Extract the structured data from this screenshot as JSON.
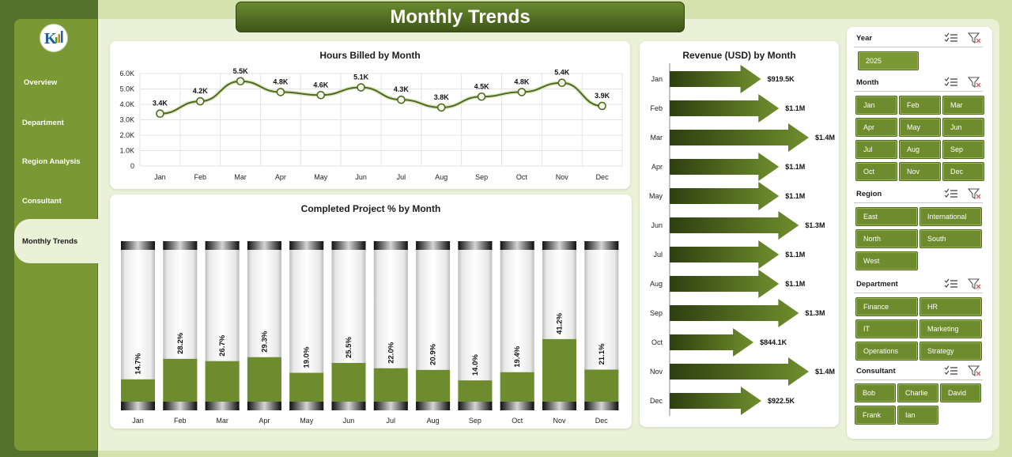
{
  "header": {
    "title": "Monthly Trends"
  },
  "sidebar": {
    "items": [
      {
        "label": "Overview",
        "active": false
      },
      {
        "label": "Department",
        "active": false
      },
      {
        "label": "Region Analysis",
        "active": false
      },
      {
        "label": "Consultant",
        "active": false
      },
      {
        "label": "Monthly Trends",
        "active": true
      }
    ]
  },
  "colors": {
    "accent": "#6e8c2d",
    "dark": "#3d5517",
    "background": "#d5e2ad"
  },
  "charts": {
    "hours": {
      "title": "Hours Billed by Month",
      "categories": [
        "Jan",
        "Feb",
        "Mar",
        "Apr",
        "May",
        "Jun",
        "Jul",
        "Aug",
        "Sep",
        "Oct",
        "Nov",
        "Dec"
      ],
      "labels": [
        "3.4K",
        "4.2K",
        "5.5K",
        "4.8K",
        "4.6K",
        "5.1K",
        "4.3K",
        "3.8K",
        "4.5K",
        "4.8K",
        "5.4K",
        "3.9K"
      ],
      "yticks": [
        "6.0K",
        "5.0K",
        "4.0K",
        "3.0K",
        "2.0K",
        "1.0K",
        "0"
      ]
    },
    "completed": {
      "title": "Completed Project % by Month",
      "categories": [
        "Jan",
        "Feb",
        "Mar",
        "Apr",
        "May",
        "Jun",
        "Jul",
        "Aug",
        "Sep",
        "Oct",
        "Nov",
        "Dec"
      ],
      "labels": [
        "14.7%",
        "28.2%",
        "26.7%",
        "29.3%",
        "19.0%",
        "25.5%",
        "22.0%",
        "20.9%",
        "14.0%",
        "19.4%",
        "41.2%",
        "21.1%"
      ]
    },
    "revenue": {
      "title": "Revenue (USD) by Month",
      "categories": [
        "Jan",
        "Feb",
        "Mar",
        "Apr",
        "May",
        "Jun",
        "Jul",
        "Aug",
        "Sep",
        "Oct",
        "Nov",
        "Dec"
      ],
      "labels": [
        "$919.5K",
        "$1.1M",
        "$1.4M",
        "$1.1M",
        "$1.1M",
        "$1.3M",
        "$1.1M",
        "$1.1M",
        "$1.3M",
        "$844.1K",
        "$1.4M",
        "$922.5K"
      ]
    }
  },
  "chart_data": [
    {
      "type": "line",
      "title": "Hours Billed by Month",
      "categories": [
        "Jan",
        "Feb",
        "Mar",
        "Apr",
        "May",
        "Jun",
        "Jul",
        "Aug",
        "Sep",
        "Oct",
        "Nov",
        "Dec"
      ],
      "values": [
        3400,
        4200,
        5500,
        4800,
        4600,
        5100,
        4300,
        3800,
        4500,
        4800,
        5400,
        3900
      ],
      "ylim": [
        0,
        6000
      ],
      "grid": true
    },
    {
      "type": "bar",
      "title": "Completed Project % by Month",
      "categories": [
        "Jan",
        "Feb",
        "Mar",
        "Apr",
        "May",
        "Jun",
        "Jul",
        "Aug",
        "Sep",
        "Oct",
        "Nov",
        "Dec"
      ],
      "values": [
        14.7,
        28.2,
        26.7,
        29.3,
        19.0,
        25.5,
        22.0,
        20.9,
        14.0,
        19.4,
        41.2,
        21.1
      ],
      "ylim": [
        0,
        100
      ]
    },
    {
      "type": "bar",
      "orientation": "horizontal",
      "title": "Revenue (USD) by Month",
      "categories": [
        "Jan",
        "Feb",
        "Mar",
        "Apr",
        "May",
        "Jun",
        "Jul",
        "Aug",
        "Sep",
        "Oct",
        "Nov",
        "Dec"
      ],
      "values": [
        919500,
        1100000,
        1400000,
        1100000,
        1100000,
        1300000,
        1100000,
        1100000,
        1300000,
        844100,
        1400000,
        922500
      ]
    }
  ],
  "slicers": {
    "year": {
      "title": "Year",
      "items": [
        "2025"
      ]
    },
    "month": {
      "title": "Month",
      "items": [
        "Jan",
        "Feb",
        "Mar",
        "Apr",
        "May",
        "Jun",
        "Jul",
        "Aug",
        "Sep",
        "Oct",
        "Nov",
        "Dec"
      ]
    },
    "region": {
      "title": "Region",
      "items": [
        "East",
        "International",
        "North",
        "South",
        "West"
      ]
    },
    "department": {
      "title": "Department",
      "items": [
        "Finance",
        "HR",
        "IT",
        "Marketing",
        "Operations",
        "Strategy"
      ]
    },
    "consultant": {
      "title": "Consultant",
      "items": [
        "Bob",
        "Charlie",
        "David",
        "Frank",
        "Ian"
      ]
    }
  }
}
